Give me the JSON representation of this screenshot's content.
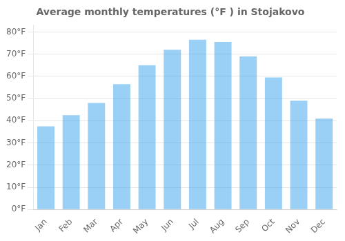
{
  "chart_data": {
    "type": "bar",
    "title": "Average monthly temperatures (°F ) in Stojakovo",
    "categories": [
      "Jan",
      "Feb",
      "Mar",
      "Apr",
      "May",
      "Jun",
      "Jul",
      "Aug",
      "Sep",
      "Oct",
      "Nov",
      "Dec"
    ],
    "values": [
      37.5,
      42.5,
      48.0,
      56.5,
      65.0,
      72.0,
      76.5,
      75.5,
      69.0,
      59.5,
      49.0,
      41.0
    ],
    "ylim": [
      0,
      83
    ],
    "yticks": [
      {
        "value": 0,
        "label": "0°F"
      },
      {
        "value": 10,
        "label": "10°F"
      },
      {
        "value": 20,
        "label": "20°F"
      },
      {
        "value": 30,
        "label": "30°F"
      },
      {
        "value": 40,
        "label": "40°F"
      },
      {
        "value": 50,
        "label": "50°F"
      },
      {
        "value": 60,
        "label": "60°F"
      },
      {
        "value": 70,
        "label": "70°F"
      },
      {
        "value": 80,
        "label": "80°F"
      }
    ],
    "grid": true
  }
}
